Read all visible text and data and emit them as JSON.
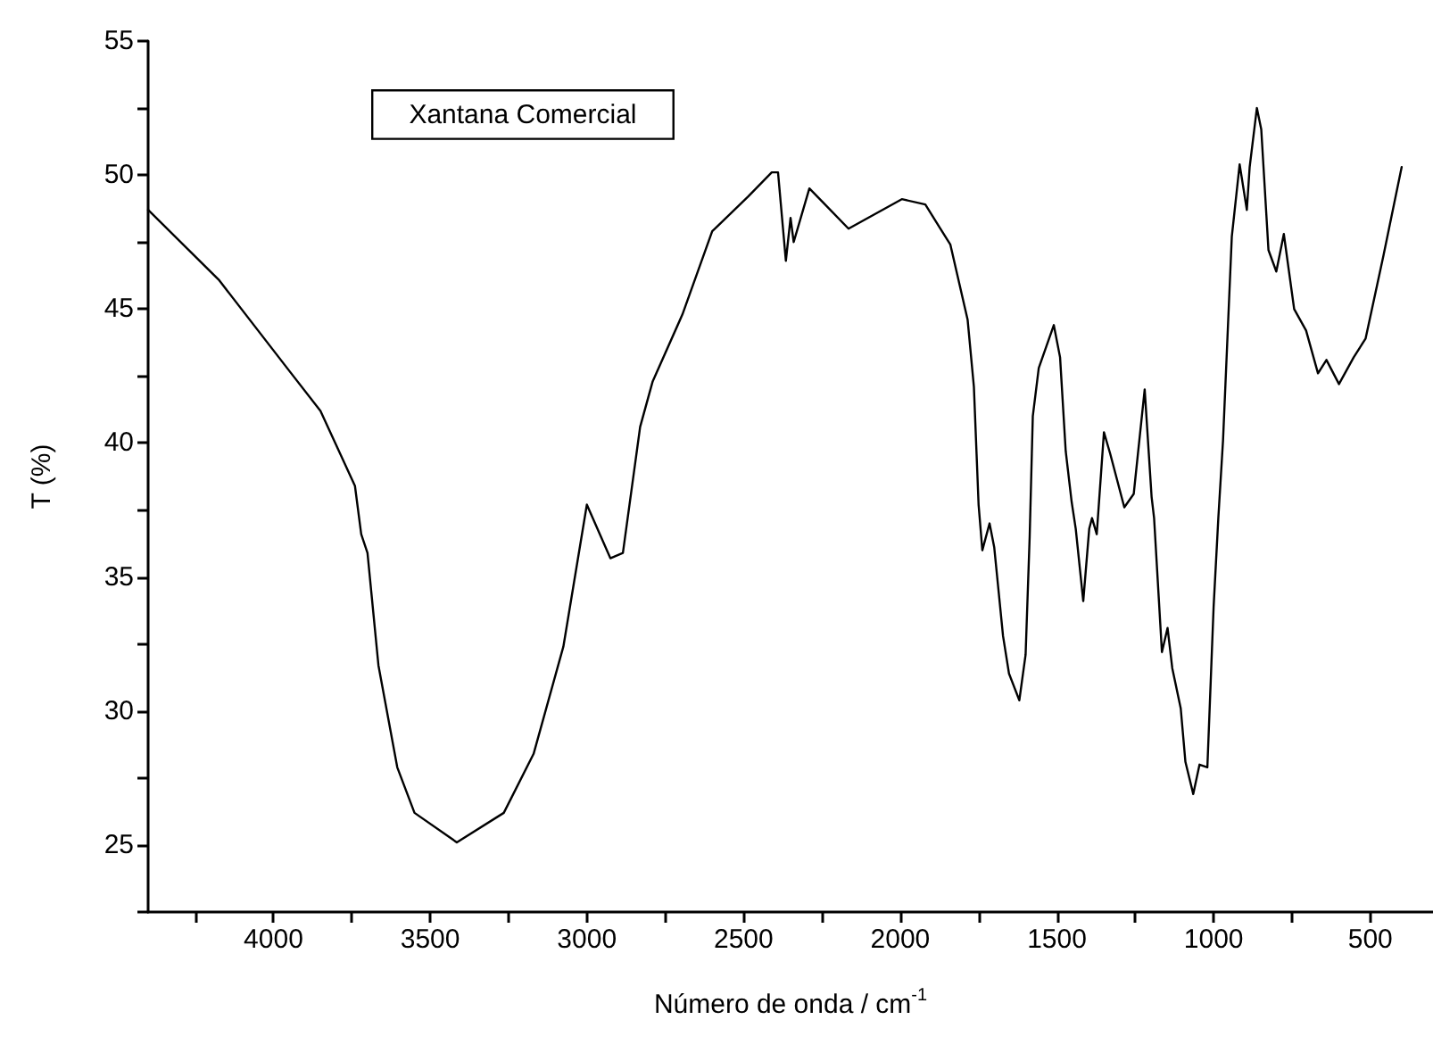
{
  "chart_data": {
    "type": "line",
    "xlabel": "Número de onda / cm$^{-1}$",
    "ylabel": "T (%)",
    "annotations": [
      "Xantana Comercial"
    ],
    "xlim": [
      4400,
      300
    ],
    "ylim": [
      22.5,
      55
    ],
    "xticks": [
      {
        "value": 4250,
        "label": null
      },
      4000,
      {
        "value": 3750,
        "label": null
      },
      3500,
      {
        "value": 3250,
        "label": null
      },
      3000,
      {
        "value": 2750,
        "label": null
      },
      2500,
      {
        "value": 2250,
        "label": null
      },
      2000,
      {
        "value": 1750,
        "label": null
      },
      1500,
      {
        "value": 1250,
        "label": null
      },
      1000,
      {
        "value": 750,
        "label": null
      },
      500
    ],
    "yticks": [
      {
        "value": 22.5,
        "label": null
      },
      25,
      {
        "value": 27.5,
        "label": null
      },
      30,
      {
        "value": 32.5,
        "label": null
      },
      35,
      {
        "value": 37.5,
        "label": null
      },
      40,
      {
        "value": 42.5,
        "label": null
      },
      45,
      {
        "value": 47.5,
        "label": null
      },
      50,
      {
        "value": 52.5,
        "label": null
      },
      55
    ],
    "grid": false,
    "marker": "none",
    "line_style": "solid",
    "x": [
      4400,
      4175,
      3950,
      3850,
      3740,
      3720,
      3700,
      3665,
      3605,
      3550,
      3415,
      3265,
      3170,
      3075,
      3000,
      2925,
      2885,
      2830,
      2790,
      2695,
      2600,
      2485,
      2410,
      2390,
      2365,
      2350,
      2340,
      2290,
      2240,
      2165,
      1995,
      1920,
      1840,
      1785,
      1765,
      1750,
      1738,
      1715,
      1700,
      1672,
      1653,
      1620,
      1600,
      1587,
      1577,
      1558,
      1510,
      1490,
      1472,
      1453,
      1440,
      1416,
      1397,
      1388,
      1373,
      1350,
      1330,
      1285,
      1255,
      1220,
      1198,
      1190,
      1165,
      1147,
      1132,
      1105,
      1090,
      1065,
      1045,
      1020,
      1000,
      985,
      970,
      942,
      917,
      894,
      885,
      862,
      848,
      825,
      800,
      776,
      743,
      705,
      667,
      640,
      600,
      553,
      515,
      458,
      400
    ],
    "series": [
      {
        "color": "#000000",
        "values": [
          48.7,
          46.1,
          42.7,
          41.2,
          38.4,
          36.6,
          35.9,
          31.7,
          27.9,
          26.2,
          25.1,
          26.2,
          28.4,
          32.4,
          37.7,
          35.7,
          35.9,
          40.6,
          42.3,
          44.8,
          47.9,
          49.2,
          50.1,
          50.1,
          46.8,
          48.4,
          47.5,
          49.5,
          48.9,
          48.0,
          49.1,
          48.9,
          47.4,
          44.6,
          42.1,
          37.7,
          36.0,
          37.0,
          36.1,
          32.8,
          31.4,
          30.4,
          32.1,
          36.5,
          41.0,
          42.8,
          44.4,
          43.2,
          39.7,
          37.8,
          36.8,
          34.1,
          36.8,
          37.2,
          36.6,
          40.4,
          39.6,
          37.6,
          38.1,
          42.0,
          38.0,
          37.2,
          32.2,
          33.1,
          31.6,
          30.1,
          28.1,
          26.9,
          28.0,
          27.9,
          33.9,
          37.2,
          40.1,
          47.7,
          50.4,
          48.7,
          50.3,
          52.5,
          51.7,
          47.2,
          46.4,
          47.8,
          45.0,
          44.2,
          42.6,
          43.1,
          42.2,
          43.2,
          43.9,
          47.0,
          50.3
        ]
      }
    ]
  }
}
